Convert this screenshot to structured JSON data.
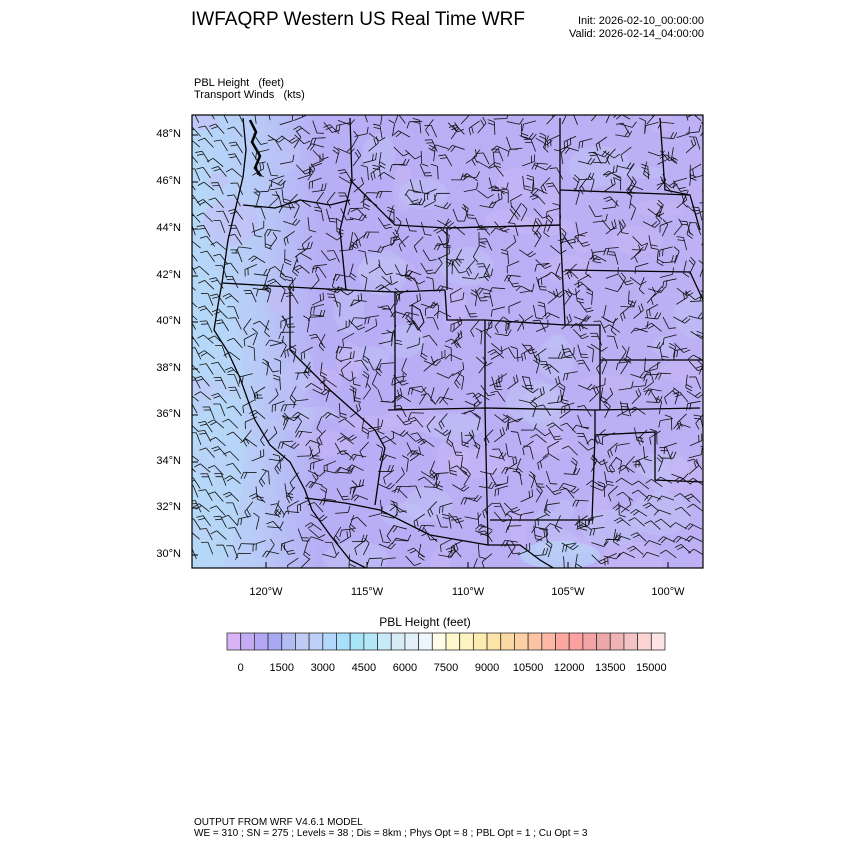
{
  "header": {
    "title": "IWFAQRP Western US Real Time WRF",
    "init": "Init: 2026-02-10_00:00:00",
    "valid": "Valid: 2026-02-14_04:00:00"
  },
  "fields": {
    "field1": "PBL Height   (feet)",
    "field2": "Transport Winds   (kts)"
  },
  "map": {
    "lat_labels": [
      "48°N",
      "46°N",
      "44°N",
      "42°N",
      "40°N",
      "38°N",
      "36°N",
      "34°N",
      "32°N",
      "30°N"
    ],
    "lon_labels": [
      "120°W",
      "115°W",
      "110°W",
      "105°W",
      "100°W"
    ],
    "fill_colors": {
      "base": "#b9adf5",
      "coast": "#b6d9f8",
      "light": "#c9b8f7"
    }
  },
  "colorbar": {
    "title": "PBL Height  (feet)",
    "labels": [
      "0",
      "1500",
      "3000",
      "4500",
      "6000",
      "7500",
      "9000",
      "10500",
      "12000",
      "13500",
      "15000"
    ],
    "colors": [
      "#d8b4f4",
      "#c4acf4",
      "#b4a8f4",
      "#a8a8f4",
      "#b4bcf4",
      "#c0ccf4",
      "#bcd0f8",
      "#b4d8fc",
      "#a8e0fc",
      "#a8e4f8",
      "#b4e8f8",
      "#c8eaf8",
      "#d8ecf8",
      "#e4f0f8",
      "#ecf6fc",
      "#fffce8",
      "#fff8cc",
      "#fff4c0",
      "#fcecb0",
      "#fce4a8",
      "#fcd8a4",
      "#fcd0a4",
      "#fcc4a4",
      "#fcb8a4",
      "#fca8a0",
      "#fca0a0",
      "#f4a4a4",
      "#eca8a8",
      "#f0b4b4",
      "#f4c4c4",
      "#fcd4d4",
      "#fce4e4"
    ]
  },
  "footer": {
    "line1": "OUTPUT FROM WRF V4.6.1 MODEL",
    "line2": "WE = 310 ; SN = 275 ; Levels = 38 ; Dis = 8km ; Phys Opt = 8 ; PBL Opt = 1 ; Cu Opt = 3"
  }
}
